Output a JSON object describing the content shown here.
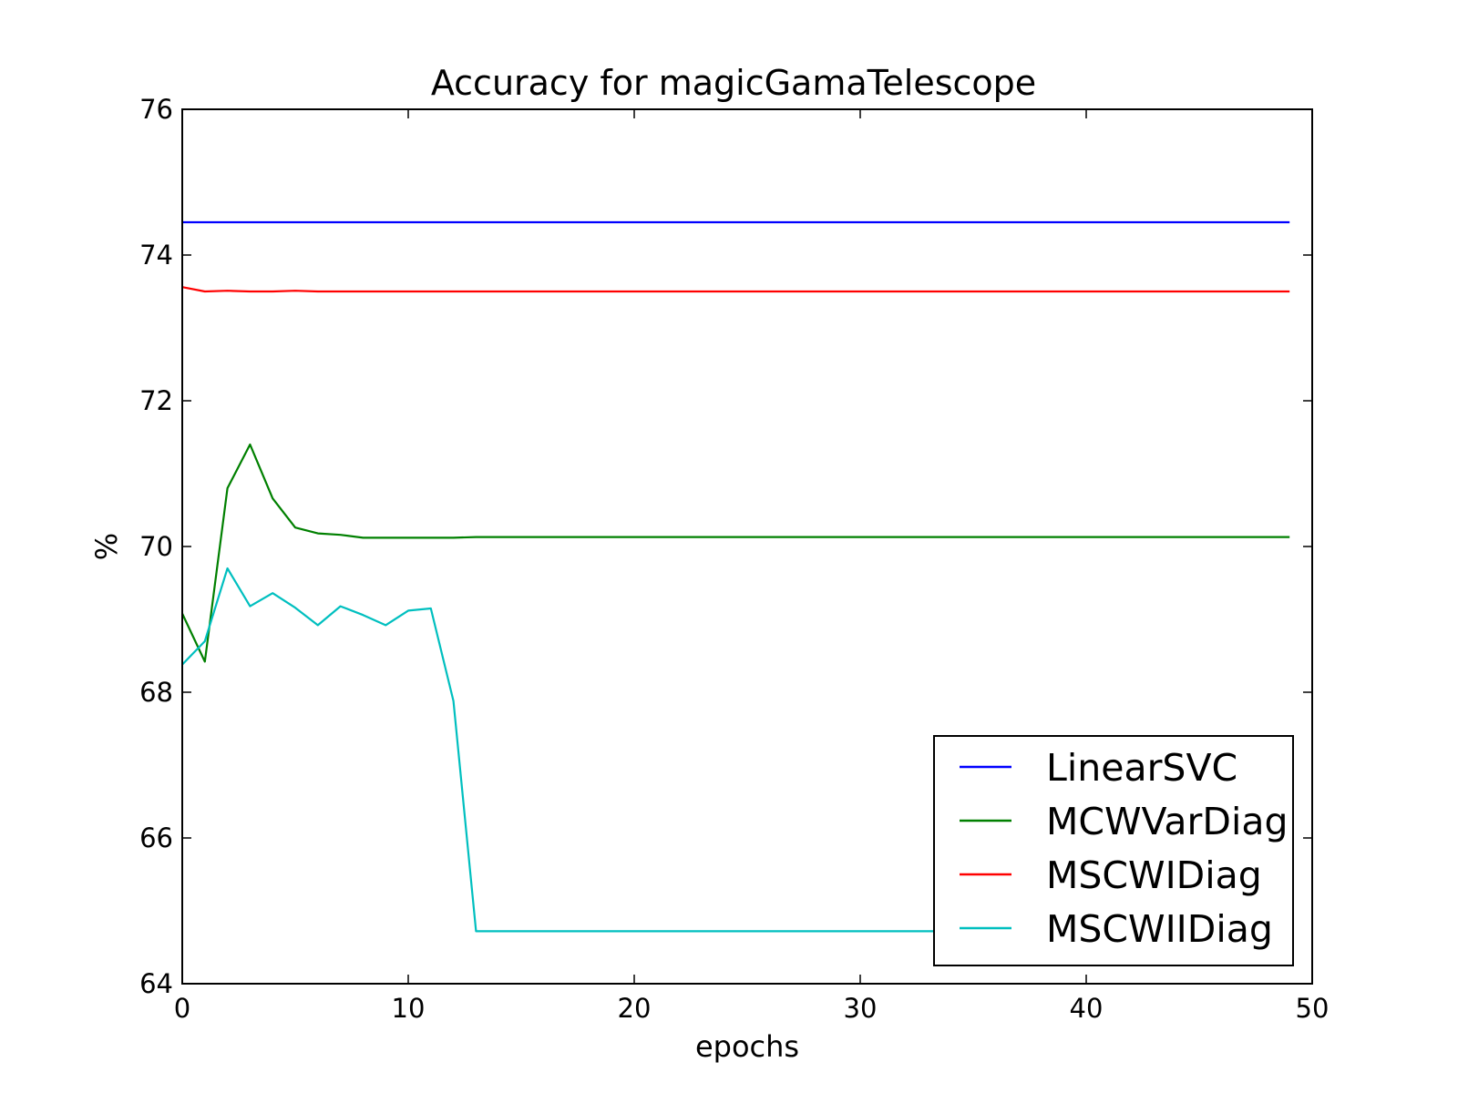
{
  "chart_data": {
    "type": "line",
    "title": "Accuracy for magicGamaTelescope",
    "xlabel": "epochs",
    "ylabel": "%",
    "xlim": [
      0,
      50
    ],
    "ylim": [
      64,
      76
    ],
    "xticks": [
      0,
      10,
      20,
      30,
      40,
      50
    ],
    "yticks": [
      64,
      66,
      68,
      70,
      72,
      74,
      76
    ],
    "grid": false,
    "legend_position": "lower-right",
    "x": [
      0,
      1,
      2,
      3,
      4,
      5,
      6,
      7,
      8,
      9,
      10,
      11,
      12,
      13,
      14,
      15,
      16,
      17,
      18,
      19,
      20,
      21,
      22,
      23,
      24,
      25,
      26,
      27,
      28,
      29,
      30,
      31,
      32,
      33,
      34,
      35,
      36,
      37,
      38,
      39,
      40,
      41,
      42,
      43,
      44,
      45,
      46,
      47,
      48,
      49
    ],
    "series": [
      {
        "name": "LinearSVC",
        "color": "#0000ff",
        "values": [
          74.45,
          74.45,
          74.45,
          74.45,
          74.45,
          74.45,
          74.45,
          74.45,
          74.45,
          74.45,
          74.45,
          74.45,
          74.45,
          74.45,
          74.45,
          74.45,
          74.45,
          74.45,
          74.45,
          74.45,
          74.45,
          74.45,
          74.45,
          74.45,
          74.45,
          74.45,
          74.45,
          74.45,
          74.45,
          74.45,
          74.45,
          74.45,
          74.45,
          74.45,
          74.45,
          74.45,
          74.45,
          74.45,
          74.45,
          74.45,
          74.45,
          74.45,
          74.45,
          74.45,
          74.45,
          74.45,
          74.45,
          74.45,
          74.45,
          74.45
        ]
      },
      {
        "name": "MCWVarDiag",
        "color": "#008000",
        "values": [
          69.08,
          68.42,
          70.8,
          71.4,
          70.66,
          70.26,
          70.18,
          70.16,
          70.12,
          70.12,
          70.12,
          70.12,
          70.12,
          70.13,
          70.13,
          70.13,
          70.13,
          70.13,
          70.13,
          70.13,
          70.13,
          70.13,
          70.13,
          70.13,
          70.13,
          70.13,
          70.13,
          70.13,
          70.13,
          70.13,
          70.13,
          70.13,
          70.13,
          70.13,
          70.13,
          70.13,
          70.13,
          70.13,
          70.13,
          70.13,
          70.13,
          70.13,
          70.13,
          70.13,
          70.13,
          70.13,
          70.13,
          70.13,
          70.13,
          70.13
        ]
      },
      {
        "name": "MSCWIDiag",
        "color": "#ff0000",
        "values": [
          73.56,
          73.5,
          73.51,
          73.5,
          73.5,
          73.51,
          73.5,
          73.5,
          73.5,
          73.5,
          73.5,
          73.5,
          73.5,
          73.5,
          73.5,
          73.5,
          73.5,
          73.5,
          73.5,
          73.5,
          73.5,
          73.5,
          73.5,
          73.5,
          73.5,
          73.5,
          73.5,
          73.5,
          73.5,
          73.5,
          73.5,
          73.5,
          73.5,
          73.5,
          73.5,
          73.5,
          73.5,
          73.5,
          73.5,
          73.5,
          73.5,
          73.5,
          73.5,
          73.5,
          73.5,
          73.5,
          73.5,
          73.5,
          73.5,
          73.5
        ]
      },
      {
        "name": "MSCWIIDiag",
        "color": "#00bfbf",
        "values": [
          68.38,
          68.7,
          69.7,
          69.18,
          69.36,
          69.16,
          68.92,
          69.18,
          69.06,
          68.92,
          69.12,
          69.15,
          67.88,
          64.72,
          64.72,
          64.72,
          64.72,
          64.72,
          64.72,
          64.72,
          64.72,
          64.72,
          64.72,
          64.72,
          64.72,
          64.72,
          64.72,
          64.72,
          64.72,
          64.72,
          64.72,
          64.72,
          64.72,
          64.72,
          64.72,
          64.72,
          64.72,
          64.72,
          64.72,
          64.72,
          64.72,
          64.72,
          64.72,
          64.72,
          64.72,
          64.72,
          64.72,
          64.72,
          64.72,
          64.72
        ]
      }
    ]
  }
}
